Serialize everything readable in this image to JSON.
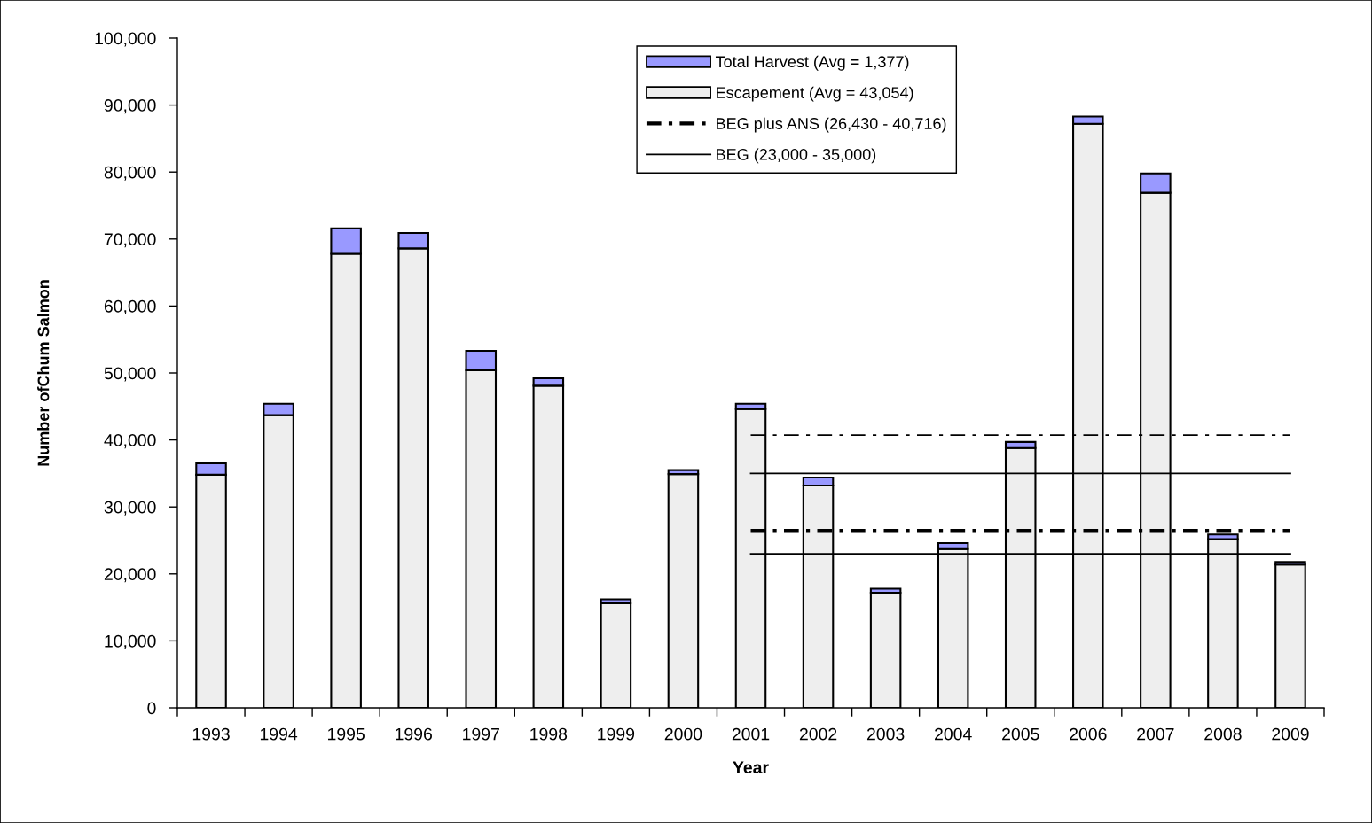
{
  "chart_data": {
    "type": "bar",
    "xlabel": "Year",
    "ylabel": "Number ofChum Salmon",
    "categories": [
      "1993",
      "1994",
      "1995",
      "1996",
      "1997",
      "1998",
      "1999",
      "2000",
      "2001",
      "2002",
      "2003",
      "2004",
      "2005",
      "2006",
      "2007",
      "2008",
      "2009"
    ],
    "stacked": true,
    "series": [
      {
        "name": "Escapement (Avg = 43,054)",
        "color": "#eeeeee",
        "values": [
          34800,
          43700,
          67800,
          68600,
          50400,
          48100,
          15600,
          34900,
          44600,
          33200,
          17200,
          23700,
          38800,
          87200,
          76900,
          25200,
          21400
        ]
      },
      {
        "name": "Total Harvest (Avg = 1,377)",
        "color": "#9999ff",
        "values": [
          1700,
          1700,
          3800,
          2300,
          2900,
          1100,
          600,
          600,
          800,
          1200,
          600,
          900,
          900,
          1100,
          2900,
          700,
          400
        ]
      },
      {
        "name": "BEG plus ANS (26,430 - 40,716)",
        "type": "line",
        "color": "#000000",
        "line_style": "dashdot",
        "values": [
          null,
          null,
          null,
          null,
          null,
          null,
          null,
          null,
          26430,
          26430,
          26430,
          26430,
          26430,
          26430,
          26430,
          26430,
          26430
        ]
      },
      {
        "type": "line",
        "color": "#000000",
        "line_style": "dashdot",
        "values": [
          null,
          null,
          null,
          null,
          null,
          null,
          null,
          null,
          40716,
          40716,
          40716,
          40716,
          40716,
          40716,
          40716,
          40716,
          40716
        ]
      },
      {
        "name": "BEG (23,000 - 35,000)",
        "type": "line",
        "color": "#000000",
        "line_style": "solid",
        "values": [
          null,
          null,
          null,
          null,
          null,
          null,
          null,
          null,
          23000,
          23000,
          23000,
          23000,
          23000,
          23000,
          23000,
          23000,
          23000
        ]
      },
      {
        "type": "line",
        "color": "#000000",
        "line_style": "solid",
        "values": [
          null,
          null,
          null,
          null,
          null,
          null,
          null,
          null,
          35000,
          35000,
          35000,
          35000,
          35000,
          35000,
          35000,
          35000,
          35000
        ]
      }
    ],
    "ylim": [
      0,
      100000
    ],
    "yticks": [
      0,
      {
        "value": 10000,
        "label": "10,000"
      },
      {
        "value": 20000,
        "label": "20,000"
      },
      {
        "value": 30000,
        "label": "30,000"
      },
      {
        "value": 40000,
        "label": "40,000"
      },
      {
        "value": 50000,
        "label": "50,000"
      },
      {
        "value": 60000,
        "label": "60,000"
      },
      {
        "value": 70000,
        "label": "70,000"
      },
      {
        "value": 80000,
        "label": "80,000"
      },
      {
        "value": 90000,
        "label": "90,000"
      },
      {
        "value": 100000,
        "label": "100,000"
      }
    ],
    "grid": false,
    "legend": "top"
  }
}
